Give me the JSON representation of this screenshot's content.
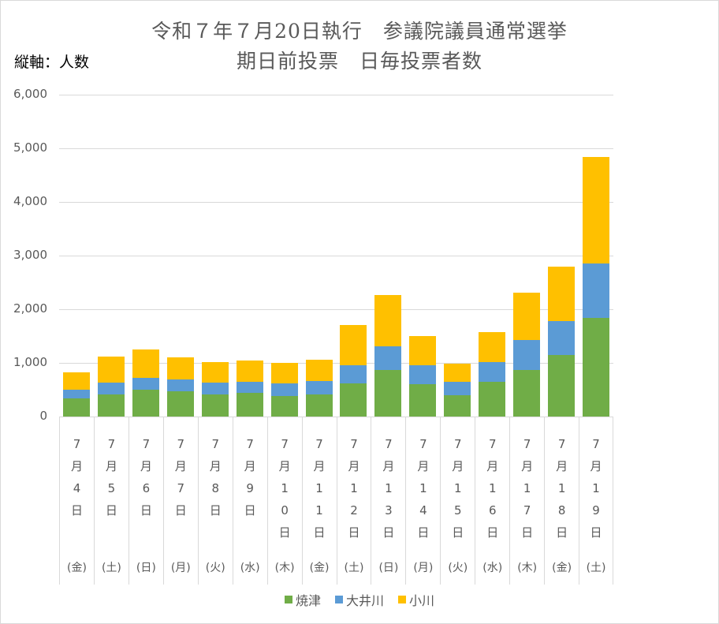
{
  "chart_data": {
    "type": "bar",
    "stacked": true,
    "title": "令和７年７月20日執行　参議院議員通常選挙",
    "subtitle": "期日前投票　日毎投票者数",
    "ylabel": "縦軸：人数",
    "xlabel": "",
    "ylim": [
      0,
      6000
    ],
    "yticks": [
      "0",
      "1,000",
      "2,000",
      "3,000",
      "4,000",
      "5,000",
      "6,000"
    ],
    "grid": true,
    "legend_position": "bottom",
    "categories": [
      {
        "month": "7",
        "m": "月",
        "day": "4",
        "d": "日",
        "dow": "(金)"
      },
      {
        "month": "7",
        "m": "月",
        "day": "5",
        "d": "日",
        "dow": "(土)"
      },
      {
        "month": "7",
        "m": "月",
        "day": "6",
        "d": "日",
        "dow": "(日)"
      },
      {
        "month": "7",
        "m": "月",
        "day": "7",
        "d": "日",
        "dow": "(月)"
      },
      {
        "month": "7",
        "m": "月",
        "day": "8",
        "d": "日",
        "dow": "(火)"
      },
      {
        "month": "7",
        "m": "月",
        "day": "9",
        "d": "日",
        "dow": "(水)"
      },
      {
        "month": "7",
        "m": "月",
        "day": "10",
        "d": "日",
        "dow": "(木)"
      },
      {
        "month": "7",
        "m": "月",
        "day": "11",
        "d": "日",
        "dow": "(金)"
      },
      {
        "month": "7",
        "m": "月",
        "day": "12",
        "d": "日",
        "dow": "(土)"
      },
      {
        "month": "7",
        "m": "月",
        "day": "13",
        "d": "日",
        "dow": "(日)"
      },
      {
        "month": "7",
        "m": "月",
        "day": "14",
        "d": "日",
        "dow": "(月)"
      },
      {
        "month": "7",
        "m": "月",
        "day": "15",
        "d": "日",
        "dow": "(火)"
      },
      {
        "month": "7",
        "m": "月",
        "day": "16",
        "d": "日",
        "dow": "(水)"
      },
      {
        "month": "7",
        "m": "月",
        "day": "17",
        "d": "日",
        "dow": "(木)"
      },
      {
        "month": "7",
        "m": "月",
        "day": "18",
        "d": "日",
        "dow": "(金)"
      },
      {
        "month": "7",
        "m": "月",
        "day": "19",
        "d": "日",
        "dow": "(土)"
      }
    ],
    "series": [
      {
        "name": "焼津",
        "color": "#70ad47",
        "values": [
          340,
          410,
          505,
          470,
          410,
          440,
          385,
          405,
          620,
          865,
          610,
          395,
          640,
          870,
          1140,
          1840
        ]
      },
      {
        "name": "大井川",
        "color": "#5b9bd5",
        "values": [
          160,
          225,
          220,
          220,
          225,
          205,
          235,
          255,
          335,
          445,
          340,
          245,
          380,
          560,
          640,
          1020
        ]
      },
      {
        "name": "小川",
        "color": "#ffc000",
        "values": [
          325,
          485,
          530,
          410,
          380,
          400,
          380,
          400,
          745,
          950,
          545,
          345,
          560,
          880,
          1015,
          1980
        ]
      }
    ]
  }
}
